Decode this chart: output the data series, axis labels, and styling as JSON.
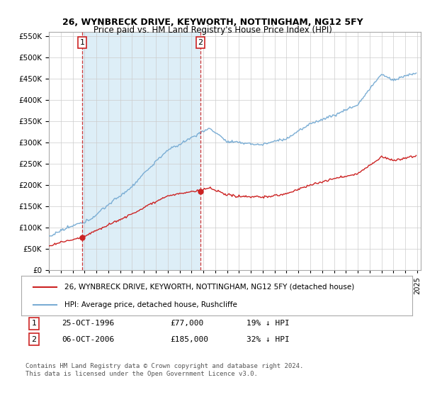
{
  "title": "26, WYNBRECK DRIVE, KEYWORTH, NOTTINGHAM, NG12 5FY",
  "subtitle": "Price paid vs. HM Land Registry's House Price Index (HPI)",
  "legend_line1": "26, WYNBRECK DRIVE, KEYWORTH, NOTTINGHAM, NG12 5FY (detached house)",
  "legend_line2": "HPI: Average price, detached house, Rushcliffe",
  "annotation1_label": "1",
  "annotation1_date": "25-OCT-1996",
  "annotation1_price": "£77,000",
  "annotation1_hpi": "19% ↓ HPI",
  "annotation2_label": "2",
  "annotation2_date": "06-OCT-2006",
  "annotation2_price": "£185,000",
  "annotation2_hpi": "32% ↓ HPI",
  "footer": "Contains HM Land Registry data © Crown copyright and database right 2024.\nThis data is licensed under the Open Government Licence v3.0.",
  "sale1_year": 1996.8,
  "sale1_price": 77000,
  "sale2_year": 2006.75,
  "sale2_price": 185000,
  "hpi_color": "#7aadd4",
  "price_color": "#cc2222",
  "vline_color": "#cc2222",
  "shade_color": "#ddeef7",
  "background_color": "#ffffff",
  "grid_color": "#cccccc",
  "ylim_min": 0,
  "ylim_max": 560000,
  "xlim_min": 1994.0,
  "xlim_max": 2025.3
}
